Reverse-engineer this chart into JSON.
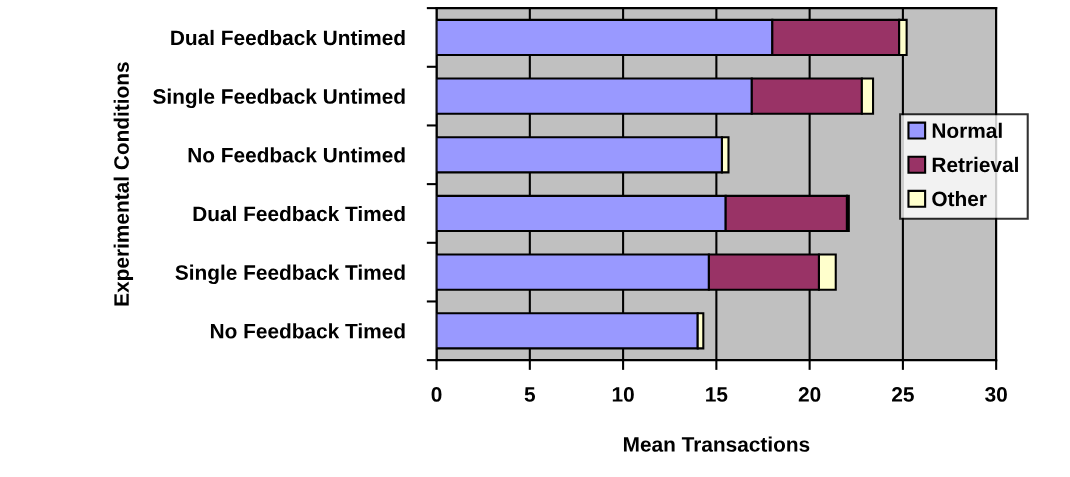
{
  "chart_data": {
    "type": "bar",
    "orientation": "horizontal",
    "stacked": true,
    "xlabel": "Mean Transactions",
    "ylabel": "Experimental Conditions",
    "categories": [
      "Dual Feedback Untimed",
      "Single Feedback Untimed",
      "No Feedback Untimed",
      "Dual Feedback Timed",
      "Single Feedback Timed",
      "No Feedback Timed"
    ],
    "series": [
      {
        "name": "Normal",
        "color": "#9999ff",
        "values": [
          18.0,
          16.9,
          15.3,
          15.5,
          14.6,
          14.0
        ]
      },
      {
        "name": "Retrieval",
        "color": "#993366",
        "values": [
          6.8,
          5.9,
          null,
          6.5,
          5.9,
          null
        ]
      },
      {
        "name": "Other",
        "color": "#ffffcc",
        "values": [
          0.4,
          0.6,
          0.35,
          0.1,
          0.9,
          0.3
        ]
      }
    ],
    "xlim": [
      0,
      30
    ],
    "xticks": [
      0,
      5,
      10,
      15,
      20,
      25,
      30
    ],
    "grid": "x",
    "legend": "right"
  }
}
